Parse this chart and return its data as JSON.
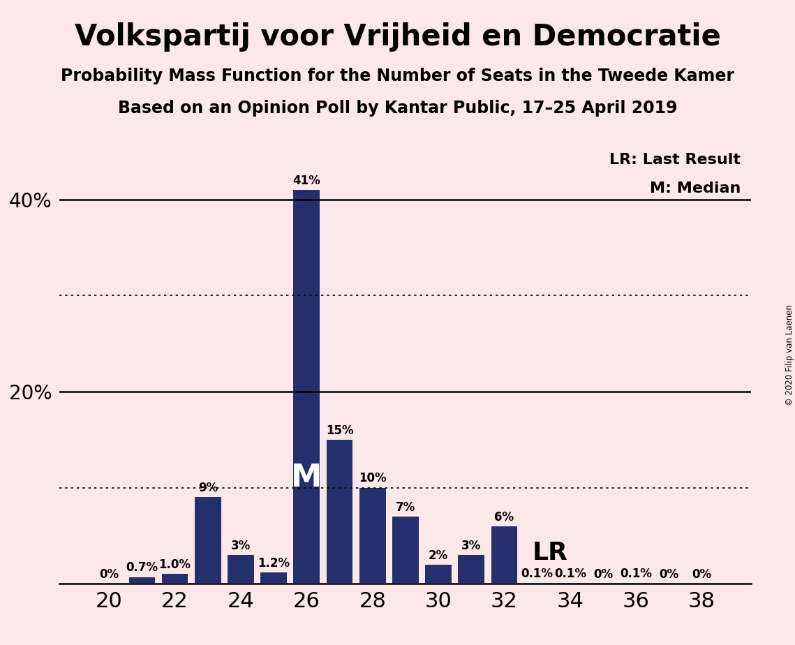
{
  "title": "Volkspartij voor Vrijheid en Democratie",
  "subtitle1": "Probability Mass Function for the Number of Seats in the Tweede Kamer",
  "subtitle2": "Based on an Opinion Poll by Kantar Public, 17–25 April 2019",
  "copyright": "© 2020 Filip van Laenen",
  "background_color": "#fce8e8",
  "bar_color": "#252f6b",
  "seats": [
    20,
    21,
    22,
    23,
    24,
    25,
    26,
    27,
    28,
    29,
    30,
    31,
    32,
    33,
    34,
    35,
    36,
    37,
    38
  ],
  "probabilities": [
    0.0,
    0.7,
    1.0,
    9.0,
    3.0,
    1.2,
    41.0,
    15.0,
    10.0,
    7.0,
    2.0,
    3.0,
    6.0,
    0.1,
    0.1,
    0.0,
    0.1,
    0.0,
    0.0
  ],
  "labels": [
    "0%",
    "0.7%",
    "1.0%",
    "9%",
    "3%",
    "1.2%",
    "41%",
    "15%",
    "10%",
    "7%",
    "2%",
    "3%",
    "6%",
    "0.1%",
    "0.1%",
    "0%",
    "0.1%",
    "0%",
    "0%"
  ],
  "yticks": [
    20,
    40
  ],
  "ylim": [
    0,
    46
  ],
  "xlim": [
    18.5,
    39.5
  ],
  "xticks": [
    20,
    22,
    24,
    26,
    28,
    30,
    32,
    34,
    36,
    38
  ],
  "median_seat": 26,
  "lr_seat": 32,
  "legend_lr": "LR: Last Result",
  "legend_m": "M: Median",
  "dotted_lines": [
    10,
    30
  ],
  "solid_lines": [
    20,
    40
  ],
  "title_fontsize": 30,
  "subtitle_fontsize": 17,
  "bar_label_fontsize": 12,
  "ytick_fontsize": 20,
  "xtick_fontsize": 22,
  "legend_fontsize": 16,
  "M_fontsize": 32,
  "LR_fontsize": 26
}
